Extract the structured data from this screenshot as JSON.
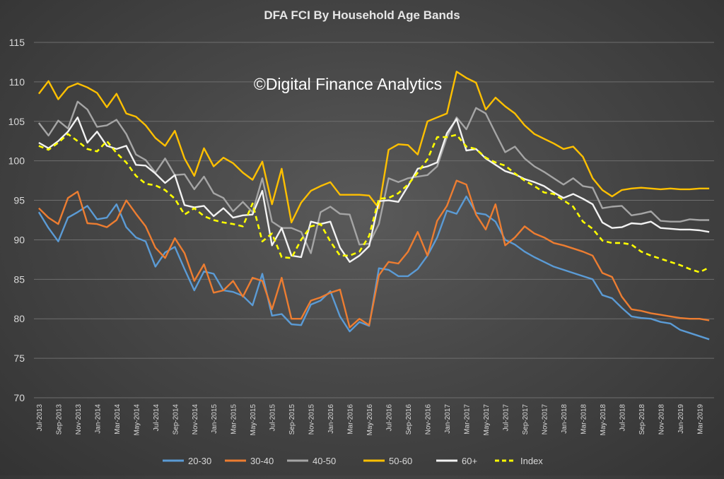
{
  "chart_data": {
    "type": "line",
    "title": "DFA FCI By Household Age Bands",
    "watermark": "©Digital Finance Analytics",
    "xlabel": "",
    "ylabel": "",
    "ylim": [
      70,
      115
    ],
    "yticks": [
      70,
      75,
      80,
      85,
      90,
      95,
      100,
      105,
      110,
      115
    ],
    "grid": true,
    "legend_position": "bottom",
    "x": [
      "Jul-2013",
      "Aug-2013",
      "Sep-2013",
      "Oct-2013",
      "Nov-2013",
      "Dec-2013",
      "Jan-2014",
      "Feb-2014",
      "Mar-2014",
      "Apr-2014",
      "May-2014",
      "Jun-2014",
      "Jul-2014",
      "Aug-2014",
      "Sep-2014",
      "Oct-2014",
      "Nov-2014",
      "Dec-2014",
      "Jan-2015",
      "Feb-2015",
      "Mar-2015",
      "Apr-2015",
      "May-2015",
      "Jun-2015",
      "Jul-2015",
      "Aug-2015",
      "Sep-2015",
      "Oct-2015",
      "Nov-2015",
      "Dec-2015",
      "Jan-2016",
      "Feb-2016",
      "Mar-2016",
      "Apr-2016",
      "May-2016",
      "Jun-2016",
      "Jul-2016",
      "Aug-2016",
      "Sep-2016",
      "Oct-2016",
      "Nov-2016",
      "Dec-2016",
      "Jan-2017",
      "Feb-2017",
      "Mar-2017",
      "Apr-2017",
      "May-2017",
      "Jun-2017",
      "Jul-2017",
      "Aug-2017",
      "Sep-2017",
      "Oct-2017",
      "Nov-2017",
      "Dec-2017",
      "Jan-2018",
      "Feb-2018",
      "Mar-2018",
      "Apr-2018",
      "May-2018",
      "Jun-2018",
      "Jul-2018",
      "Aug-2018",
      "Sep-2018",
      "Oct-2018",
      "Nov-2018",
      "Dec-2018",
      "Jan-2019",
      "Feb-2019",
      "Mar-2019",
      "Apr-2019"
    ],
    "tick_labels": [
      "Jul-2013",
      "Sep-2013",
      "Nov-2013",
      "Jan-2014",
      "Mar-2014",
      "May-2014",
      "Jul-2014",
      "Sep-2014",
      "Nov-2014",
      "Jan-2015",
      "Mar-2015",
      "May-2015",
      "Jul-2015",
      "Sep-2015",
      "Nov-2015",
      "Jan-2016",
      "Mar-2016",
      "May-2016",
      "Jul-2016",
      "Sep-2016",
      "Nov-2016",
      "Jan-2017",
      "Mar-2017",
      "May-2017",
      "Jul-2017",
      "Sep-2017",
      "Nov-2017",
      "Jan-2018",
      "Mar-2018",
      "May-2018",
      "Jul-2018",
      "Sep-2018",
      "Nov-2018",
      "Jan-2019",
      "Mar-2019"
    ],
    "series": [
      {
        "name": "20-30",
        "color": "#5b9bd5",
        "dash": false,
        "values": [
          93.5,
          91.5,
          89.8,
          92.8,
          93.5,
          94.3,
          92.6,
          92.8,
          94.5,
          91.6,
          90.3,
          89.8,
          86.6,
          88.4,
          89.1,
          86.3,
          83.6,
          86.0,
          85.7,
          83.6,
          83.4,
          82.9,
          81.7,
          85.7,
          80.4,
          80.6,
          79.3,
          79.2,
          81.8,
          82.3,
          83.5,
          80.3,
          78.4,
          79.6,
          79.1,
          86.4,
          86.2,
          85.4,
          85.4,
          86.3,
          88.0,
          90.3,
          93.7,
          93.3,
          95.5,
          93.4,
          93.2,
          92.3,
          90.0,
          89.4,
          88.5,
          87.8,
          87.2,
          86.6,
          86.2,
          85.8,
          85.4,
          85.0,
          83.0,
          82.6,
          81.4,
          80.3,
          80.1,
          80.0,
          79.6,
          79.4,
          78.6,
          78.2,
          77.8,
          77.4
        ]
      },
      {
        "name": "30-40",
        "color": "#ed7d31",
        "dash": false,
        "values": [
          94.0,
          92.8,
          92.0,
          95.3,
          96.1,
          92.1,
          92.0,
          91.6,
          92.5,
          95.0,
          93.3,
          91.7,
          89.0,
          87.7,
          90.2,
          88.3,
          84.8,
          86.9,
          83.3,
          83.6,
          84.8,
          82.8,
          85.2,
          84.8,
          81.2,
          85.2,
          80.0,
          80.0,
          82.3,
          82.7,
          83.3,
          83.7,
          78.9,
          80.0,
          79.2,
          85.5,
          87.2,
          87.0,
          88.5,
          91.0,
          88.0,
          92.4,
          94.3,
          97.5,
          97.0,
          93.2,
          91.3,
          94.5,
          89.3,
          90.3,
          91.7,
          90.8,
          90.3,
          89.6,
          89.3,
          88.9,
          88.5,
          88.0,
          85.8,
          85.3,
          82.8,
          81.2,
          81.0,
          80.7,
          80.5,
          80.3,
          80.1,
          80.0,
          80.0,
          79.8
        ]
      },
      {
        "name": "40-50",
        "color": "#a5a5a5",
        "dash": false,
        "values": [
          104.8,
          103.2,
          105.1,
          104.1,
          107.5,
          106.5,
          104.3,
          104.5,
          105.2,
          103.4,
          100.8,
          100.1,
          98.5,
          100.3,
          98.2,
          98.3,
          96.4,
          98.0,
          95.9,
          95.3,
          93.6,
          94.8,
          93.5,
          97.8,
          92.3,
          91.5,
          91.5,
          91.0,
          88.3,
          93.5,
          94.2,
          93.3,
          93.2,
          89.4,
          89.5,
          92.0,
          97.8,
          97.3,
          97.8,
          98.0,
          98.2,
          99.3,
          103.0,
          105.5,
          104.0,
          106.7,
          106.0,
          103.5,
          101.1,
          101.8,
          100.3,
          99.3,
          98.6,
          97.8,
          97.0,
          97.8,
          96.8,
          96.6,
          94.0,
          94.2,
          94.3,
          93.1,
          93.3,
          93.6,
          92.4,
          92.3,
          92.3,
          92.6,
          92.5,
          92.5
        ]
      },
      {
        "name": "50-60",
        "color": "#ffc000",
        "dash": false,
        "values": [
          108.5,
          110.1,
          107.8,
          109.3,
          109.8,
          109.3,
          108.6,
          106.8,
          108.5,
          106.0,
          105.6,
          104.5,
          102.9,
          101.9,
          103.8,
          100.3,
          98.1,
          101.6,
          99.3,
          100.4,
          99.7,
          98.5,
          97.6,
          99.9,
          94.5,
          99.0,
          92.2,
          94.7,
          96.2,
          96.8,
          97.3,
          95.7,
          95.7,
          95.7,
          95.6,
          94.0,
          101.4,
          102.1,
          102.0,
          100.8,
          105.0,
          105.5,
          106.0,
          111.3,
          110.5,
          109.9,
          106.5,
          108.0,
          106.9,
          106.0,
          104.5,
          103.4,
          102.8,
          102.2,
          101.5,
          101.8,
          100.5,
          97.8,
          96.3,
          95.5,
          96.3,
          96.5,
          96.6,
          96.5,
          96.4,
          96.5,
          96.4,
          96.4,
          96.5,
          96.5
        ]
      },
      {
        "name": "60+",
        "color": "#f2f2f2",
        "dash": false,
        "values": [
          102.3,
          101.6,
          102.5,
          103.7,
          105.5,
          102.3,
          103.7,
          101.9,
          101.5,
          101.9,
          99.5,
          99.4,
          98.4,
          97.2,
          98.2,
          94.4,
          94.1,
          94.3,
          93.0,
          94.0,
          92.8,
          93.1,
          93.2,
          96.2,
          89.3,
          91.5,
          88.0,
          87.8,
          92.3,
          92.0,
          92.3,
          89.0,
          87.2,
          88.0,
          89.2,
          94.9,
          95.0,
          94.8,
          96.8,
          99.0,
          99.3,
          99.8,
          103.5,
          105.3,
          101.3,
          101.5,
          100.3,
          99.5,
          98.7,
          98.3,
          97.7,
          97.3,
          96.8,
          96.0,
          95.3,
          95.8,
          95.2,
          94.5,
          92.2,
          91.5,
          91.6,
          92.1,
          92.0,
          92.3,
          91.5,
          91.4,
          91.3,
          91.3,
          91.2,
          91.0
        ]
      },
      {
        "name": "Index",
        "color": "#ffff00",
        "dash": true,
        "values": [
          101.9,
          101.4,
          102.3,
          103.4,
          102.5,
          101.5,
          101.2,
          102.5,
          101.0,
          99.8,
          98.1,
          97.1,
          96.9,
          96.3,
          95.2,
          93.2,
          94.0,
          93.0,
          92.5,
          92.2,
          92.0,
          91.7,
          94.6,
          89.8,
          90.8,
          87.8,
          87.7,
          90.0,
          91.7,
          92.0,
          89.8,
          88.0,
          88.0,
          88.5,
          90.5,
          95.2,
          95.3,
          95.9,
          97.0,
          98.5,
          100.2,
          103.0,
          103.0,
          103.3,
          101.8,
          101.5,
          100.4,
          99.8,
          99.4,
          98.4,
          97.5,
          96.8,
          96.0,
          95.8,
          95.0,
          94.2,
          92.3,
          91.4,
          89.9,
          89.6,
          89.6,
          89.4,
          88.5,
          88.0,
          87.6,
          87.2,
          86.8,
          86.3,
          85.9,
          86.5
        ]
      }
    ]
  }
}
